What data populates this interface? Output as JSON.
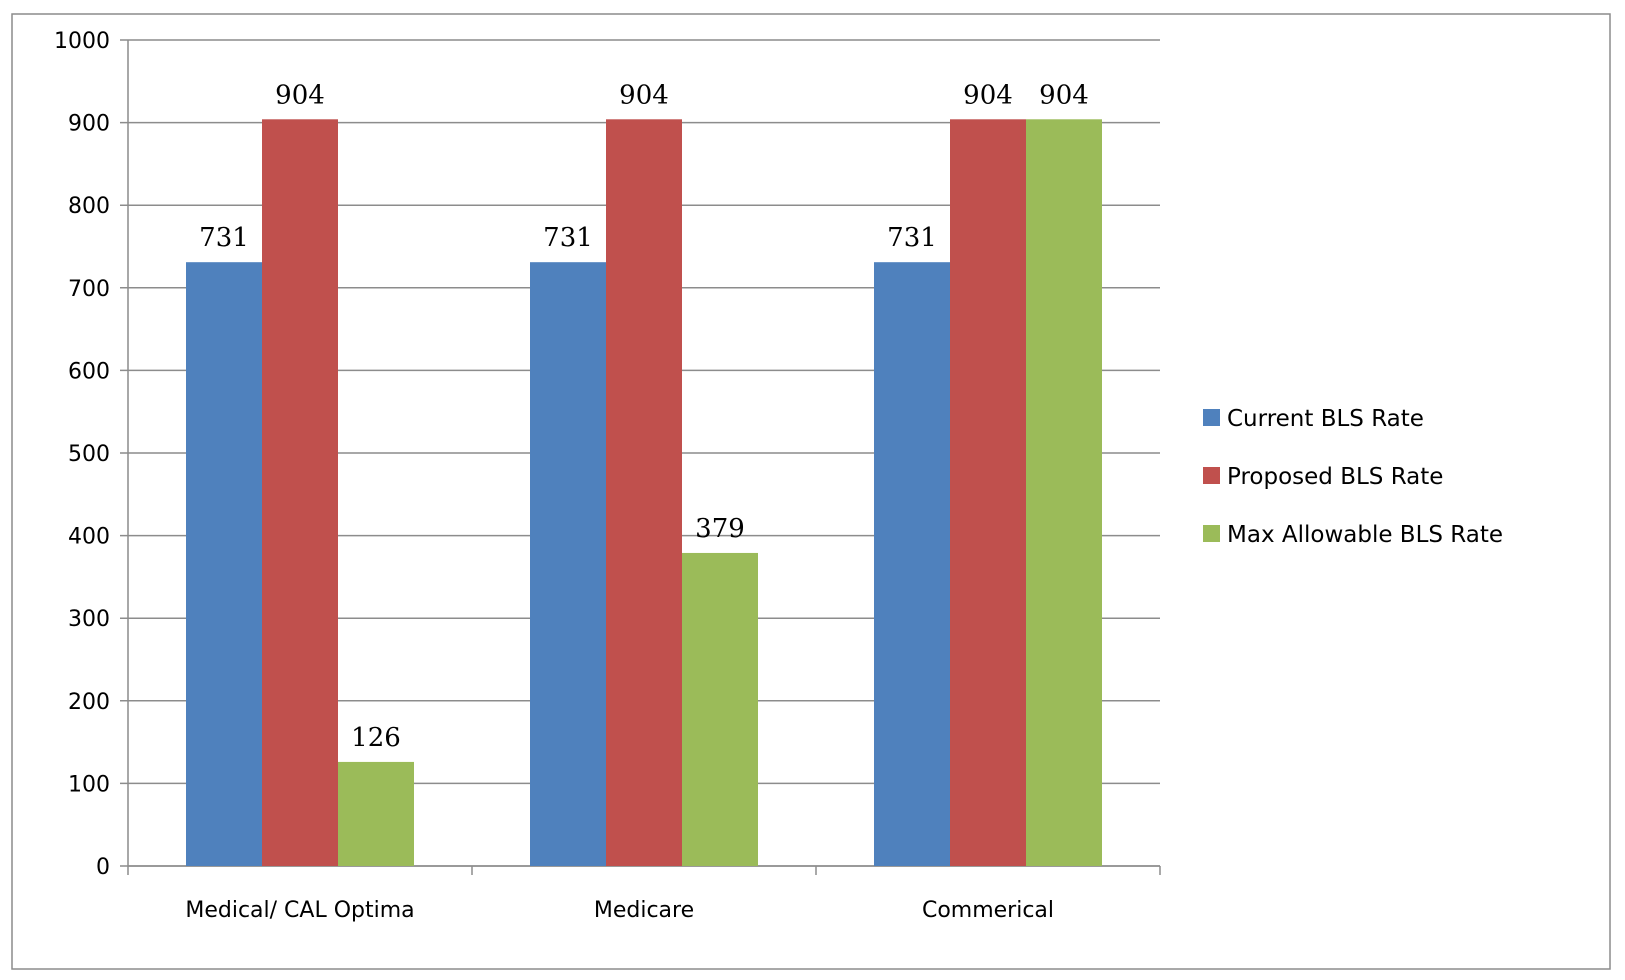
{
  "chart_data": {
    "type": "bar",
    "categories": [
      "Medical/ CAL Optima",
      "Medicare",
      "Commerical"
    ],
    "series": [
      {
        "name": "Current BLS Rate",
        "values": [
          731,
          731,
          731
        ],
        "color": "#4f81bd"
      },
      {
        "name": "Proposed BLS Rate",
        "values": [
          904,
          904,
          904
        ],
        "color": "#c0504d"
      },
      {
        "name": "Max Allowable BLS Rate",
        "values": [
          126,
          379,
          904
        ],
        "color": "#9bbb59"
      }
    ],
    "data_labels": [
      [
        "731",
        "731",
        "731"
      ],
      [
        "904",
        "904",
        "904"
      ],
      [
        "126",
        "379",
        "904"
      ]
    ],
    "yticks": [
      "0",
      "100",
      "200",
      "300",
      "400",
      "500",
      "600",
      "700",
      "800",
      "900",
      "1000"
    ],
    "ylim": [
      0,
      1000
    ],
    "grid": true,
    "legend_position": "right"
  }
}
